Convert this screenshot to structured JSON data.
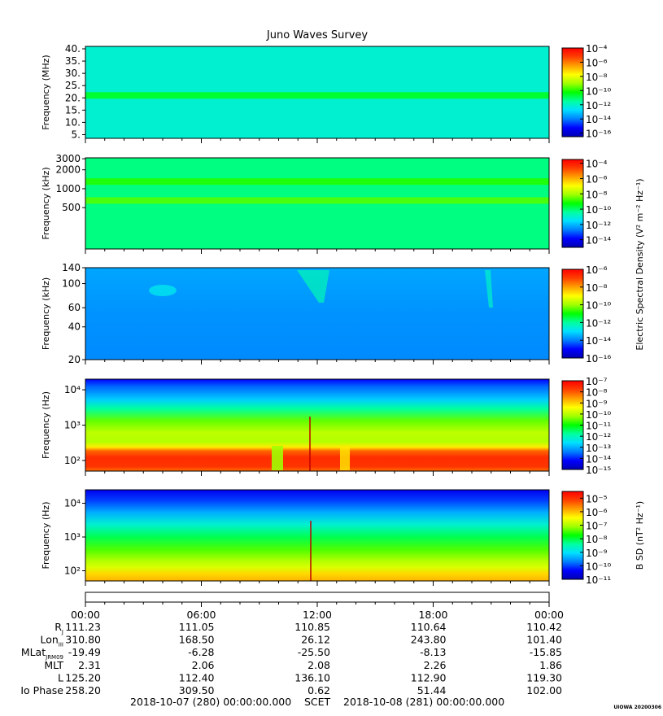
{
  "title": "Juno Waves Survey",
  "stamp": "UIOWA 20200306",
  "footer": {
    "start": "2018-10-07 (280) 00:00:00.000",
    "scet": "SCET",
    "end": "2018-10-08 (281) 00:00:00.000"
  },
  "colors": {
    "rainbow": [
      "#0000b0",
      "#0000ff",
      "#0080ff",
      "#00e0ff",
      "#00ffa0",
      "#00ff00",
      "#a0ff00",
      "#ffff00",
      "#ffa000",
      "#ff4000",
      "#ff0000"
    ]
  },
  "chart_data": [
    {
      "type": "heatmap",
      "ylabel": "Frequency (MHz)",
      "yscale": "linear",
      "ylim": [
        3.5,
        41
      ],
      "yticks": [
        5,
        10,
        15,
        20,
        25,
        30,
        35,
        40
      ],
      "ytick_labels": [
        "5.",
        "10.",
        "15.",
        "20.",
        "25.",
        "30.",
        "35.",
        "40."
      ],
      "colorbar": {
        "scale": "log",
        "range_exp": [
          -16.5,
          -4
        ],
        "tick_exp": [
          -4,
          -6,
          -8,
          -10,
          -12,
          -14,
          -16
        ]
      },
      "base_level": 0.35,
      "bands": [
        {
          "y": 21,
          "level": 0.48
        }
      ]
    },
    {
      "type": "heatmap",
      "ylabel": "Frequency (kHz)",
      "yscale": "log",
      "ylim": [
        110,
        3100
      ],
      "yticks": [
        500,
        1000,
        2000,
        3000
      ],
      "ytick_labels": [
        "500",
        "1000",
        "2000",
        "3000"
      ],
      "colorbar": {
        "scale": "log",
        "range_exp": [
          -15,
          -3.5
        ],
        "tick_exp": [
          -4,
          -6,
          -8,
          -10,
          -12,
          -14
        ]
      },
      "colorbar_label": "Electric Spectral Density (V^2 m^-2 Hz^-1)",
      "base_level": 0.42,
      "bands": [
        {
          "y": 1300,
          "level": 0.52
        },
        {
          "y": 650,
          "level": 0.55
        }
      ]
    },
    {
      "type": "heatmap",
      "ylabel": "Frequency (kHz)",
      "yscale": "log",
      "ylim": [
        20,
        140
      ],
      "yticks": [
        20,
        40,
        60,
        100,
        140
      ],
      "ytick_labels": [
        "20",
        "40",
        "60",
        "100",
        "140"
      ],
      "colorbar": {
        "scale": "log",
        "range_exp": [
          -16,
          -6
        ],
        "tick_exp": [
          -6,
          -8,
          -10,
          -12,
          -14,
          -16
        ]
      },
      "base_level": 0.22
    },
    {
      "type": "heatmap",
      "ylabel": "Frequency (Hz)",
      "yscale": "log",
      "ylim": [
        50,
        20000
      ],
      "yticks": [
        100,
        1000,
        10000
      ],
      "ytick_labels": [
        "10^2",
        "10^3",
        "10^4"
      ],
      "colorbar": {
        "scale": "log",
        "range_exp": [
          -15,
          -7
        ],
        "tick_exp": [
          -7,
          -8,
          -9,
          -10,
          -11,
          -12,
          -13,
          -14,
          -15
        ]
      },
      "base_level": 0.5
    },
    {
      "type": "heatmap",
      "ylabel": "Frequency (Hz)",
      "yscale": "log",
      "ylim": [
        50,
        25000
      ],
      "yticks": [
        100,
        1000,
        10000
      ],
      "ytick_labels": [
        "10^2",
        "10^3",
        "10^4"
      ],
      "colorbar": {
        "scale": "log",
        "range_exp": [
          -11,
          -4.5
        ],
        "tick_exp": [
          -5,
          -6,
          -7,
          -8,
          -9,
          -10,
          -11
        ]
      },
      "colorbar_label": "B SD (nT^2 Hz^-1)",
      "base_level": 0.5
    }
  ],
  "time_axis": {
    "ticks": [
      "00:00",
      "06:00",
      "12:00",
      "18:00",
      "00:00"
    ],
    "hours": [
      0,
      6,
      12,
      18,
      24
    ]
  },
  "ephemeris": [
    {
      "label": "RJ",
      "values": [
        "111.23",
        "111.05",
        "110.85",
        "110.64",
        "110.42"
      ]
    },
    {
      "label": "LonIII",
      "values": [
        "310.80",
        "168.50",
        "26.12",
        "243.80",
        "101.40"
      ]
    },
    {
      "label": "MLatJRM09",
      "values": [
        "-19.49",
        "-6.28",
        "-25.50",
        "-8.13",
        "-15.85"
      ]
    },
    {
      "label": "MLT",
      "values": [
        "2.31",
        "2.06",
        "2.08",
        "2.26",
        "1.86"
      ]
    },
    {
      "label": "L",
      "values": [
        "125.20",
        "112.40",
        "136.10",
        "112.90",
        "119.30"
      ]
    },
    {
      "label": "Io Phase",
      "values": [
        "258.20",
        "309.50",
        "0.62",
        "51.44",
        "102.00"
      ]
    }
  ]
}
